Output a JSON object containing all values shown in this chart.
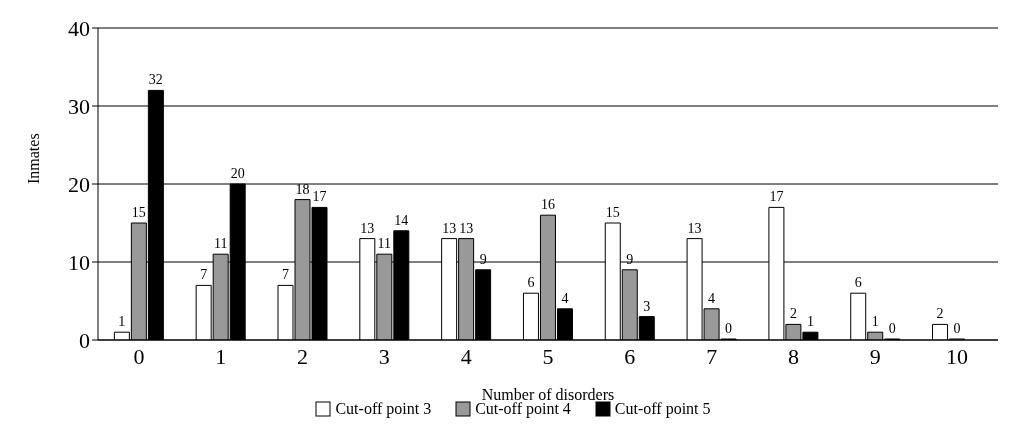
{
  "chart_data": {
    "type": "bar",
    "xlabel": "Number of disorders",
    "ylabel": "Inmates",
    "categories": [
      "0",
      "1",
      "2",
      "3",
      "4",
      "5",
      "6",
      "7",
      "8",
      "9",
      "10"
    ],
    "series": [
      {
        "name": "Cut-off point 3",
        "color": "#ffffff",
        "values": [
          1,
          7,
          7,
          13,
          13,
          6,
          15,
          13,
          17,
          6,
          2
        ]
      },
      {
        "name": "Cut-off point 4",
        "color": "#999999",
        "values": [
          15,
          11,
          18,
          11,
          13,
          16,
          9,
          4,
          2,
          1,
          0
        ]
      },
      {
        "name": "Cut-off point 5",
        "color": "#000000",
        "values": [
          32,
          20,
          17,
          14,
          9,
          4,
          3,
          0,
          1,
          0,
          null
        ]
      }
    ],
    "ylim": [
      0,
      40
    ],
    "yticks": [
      0,
      10,
      20,
      30,
      40
    ],
    "grid": "y",
    "legend": "bottom",
    "data_labels": true
  }
}
